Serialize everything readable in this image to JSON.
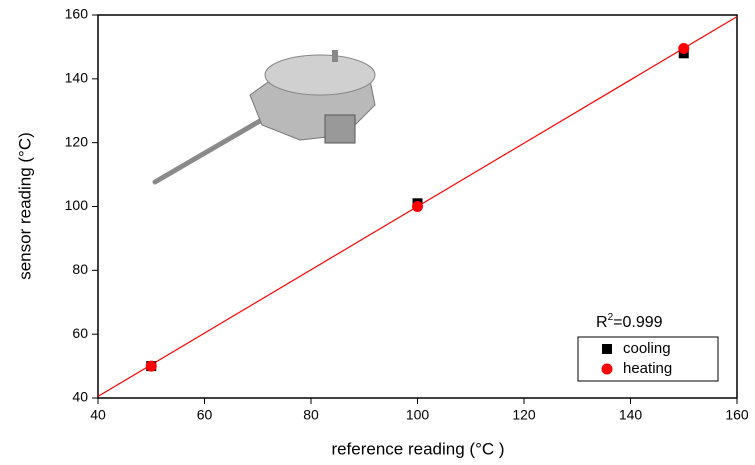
{
  "chart_data": {
    "type": "scatter",
    "xlabel": "reference reading (°C )",
    "ylabel": "sensor reading (°C)",
    "xlim": [
      40,
      160
    ],
    "xticks": [
      40,
      60,
      80,
      100,
      120,
      140,
      160
    ],
    "ylim": [
      40,
      160
    ],
    "yticks": [
      40,
      60,
      80,
      100,
      120,
      140,
      160
    ],
    "series": [
      {
        "name": "cooling",
        "color": "#000000",
        "marker": "square",
        "x": [
          50,
          100,
          150
        ],
        "values": [
          50,
          101,
          148
        ]
      },
      {
        "name": "heating",
        "color": "#ff0000",
        "marker": "circle",
        "x": [
          50,
          100,
          150
        ],
        "values": [
          50,
          100,
          149.5
        ]
      }
    ],
    "fit_line": {
      "color": "#ff0000",
      "x": [
        40,
        160
      ],
      "values": [
        40.5,
        159.5
      ]
    },
    "annotation": {
      "base": "R",
      "sup": "2",
      "text": "=0.999"
    },
    "legend": "lower right"
  }
}
